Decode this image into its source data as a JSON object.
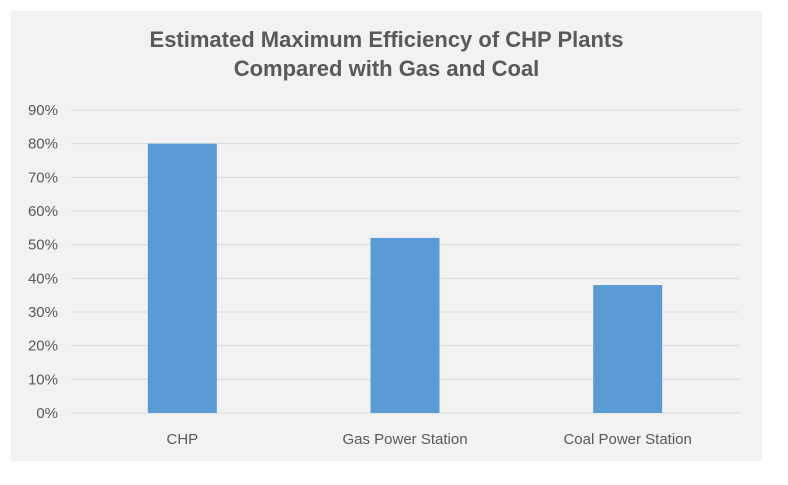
{
  "chart_data": {
    "type": "bar",
    "title_lines": [
      "Estimated Maximum Efficiency of CHP Plants",
      "Compared with Gas and Coal"
    ],
    "categories": [
      "CHP",
      "Gas Power Station",
      "Coal Power Station"
    ],
    "series": [
      {
        "values": [
          80,
          52,
          38
        ]
      }
    ],
    "xlabel": "",
    "ylabel": "",
    "ylim": [
      0,
      90
    ],
    "yticks": [
      0,
      10,
      20,
      30,
      40,
      50,
      60,
      70,
      80,
      90
    ],
    "ytick_labels": [
      "0%",
      "10%",
      "20%",
      "30%",
      "40%",
      "50%",
      "60%",
      "70%",
      "80%",
      "90%"
    ],
    "grid": true,
    "legend": "none",
    "colors": {
      "bar": "#5b9bd5",
      "grid": "#d9d9d9",
      "text": "#595959",
      "background": "#f2f2f2"
    }
  }
}
